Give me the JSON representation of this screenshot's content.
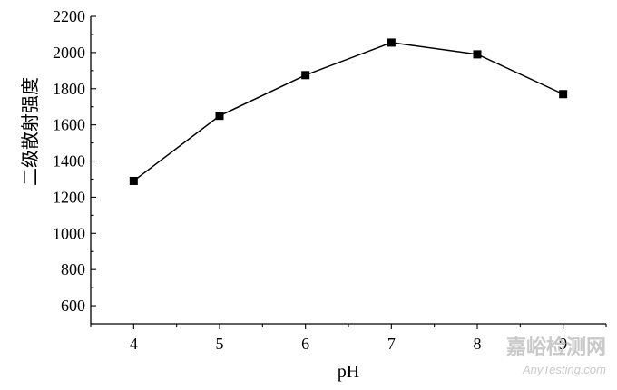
{
  "chart_data": {
    "type": "line",
    "title": "",
    "xlabel": "pH",
    "ylabel": "二级散射强度",
    "x": [
      4,
      5,
      6,
      7,
      8,
      9
    ],
    "series": [
      {
        "values": [
          1290,
          1650,
          1875,
          2055,
          1990,
          1770
        ]
      }
    ],
    "xlim": [
      3.5,
      9.5
    ],
    "ylim": [
      500,
      2200
    ],
    "xticks": [
      4,
      5,
      6,
      7,
      8,
      9
    ],
    "yticks": [
      600,
      800,
      1000,
      1200,
      1400,
      1600,
      1800,
      2000,
      2200
    ],
    "grid": false,
    "legend": "none",
    "colors": {
      "line": "#000000",
      "marker": "#000000"
    },
    "marker": "square"
  },
  "watermark": {
    "name": "嘉峪检测网",
    "url": "AnyTesting.com"
  }
}
